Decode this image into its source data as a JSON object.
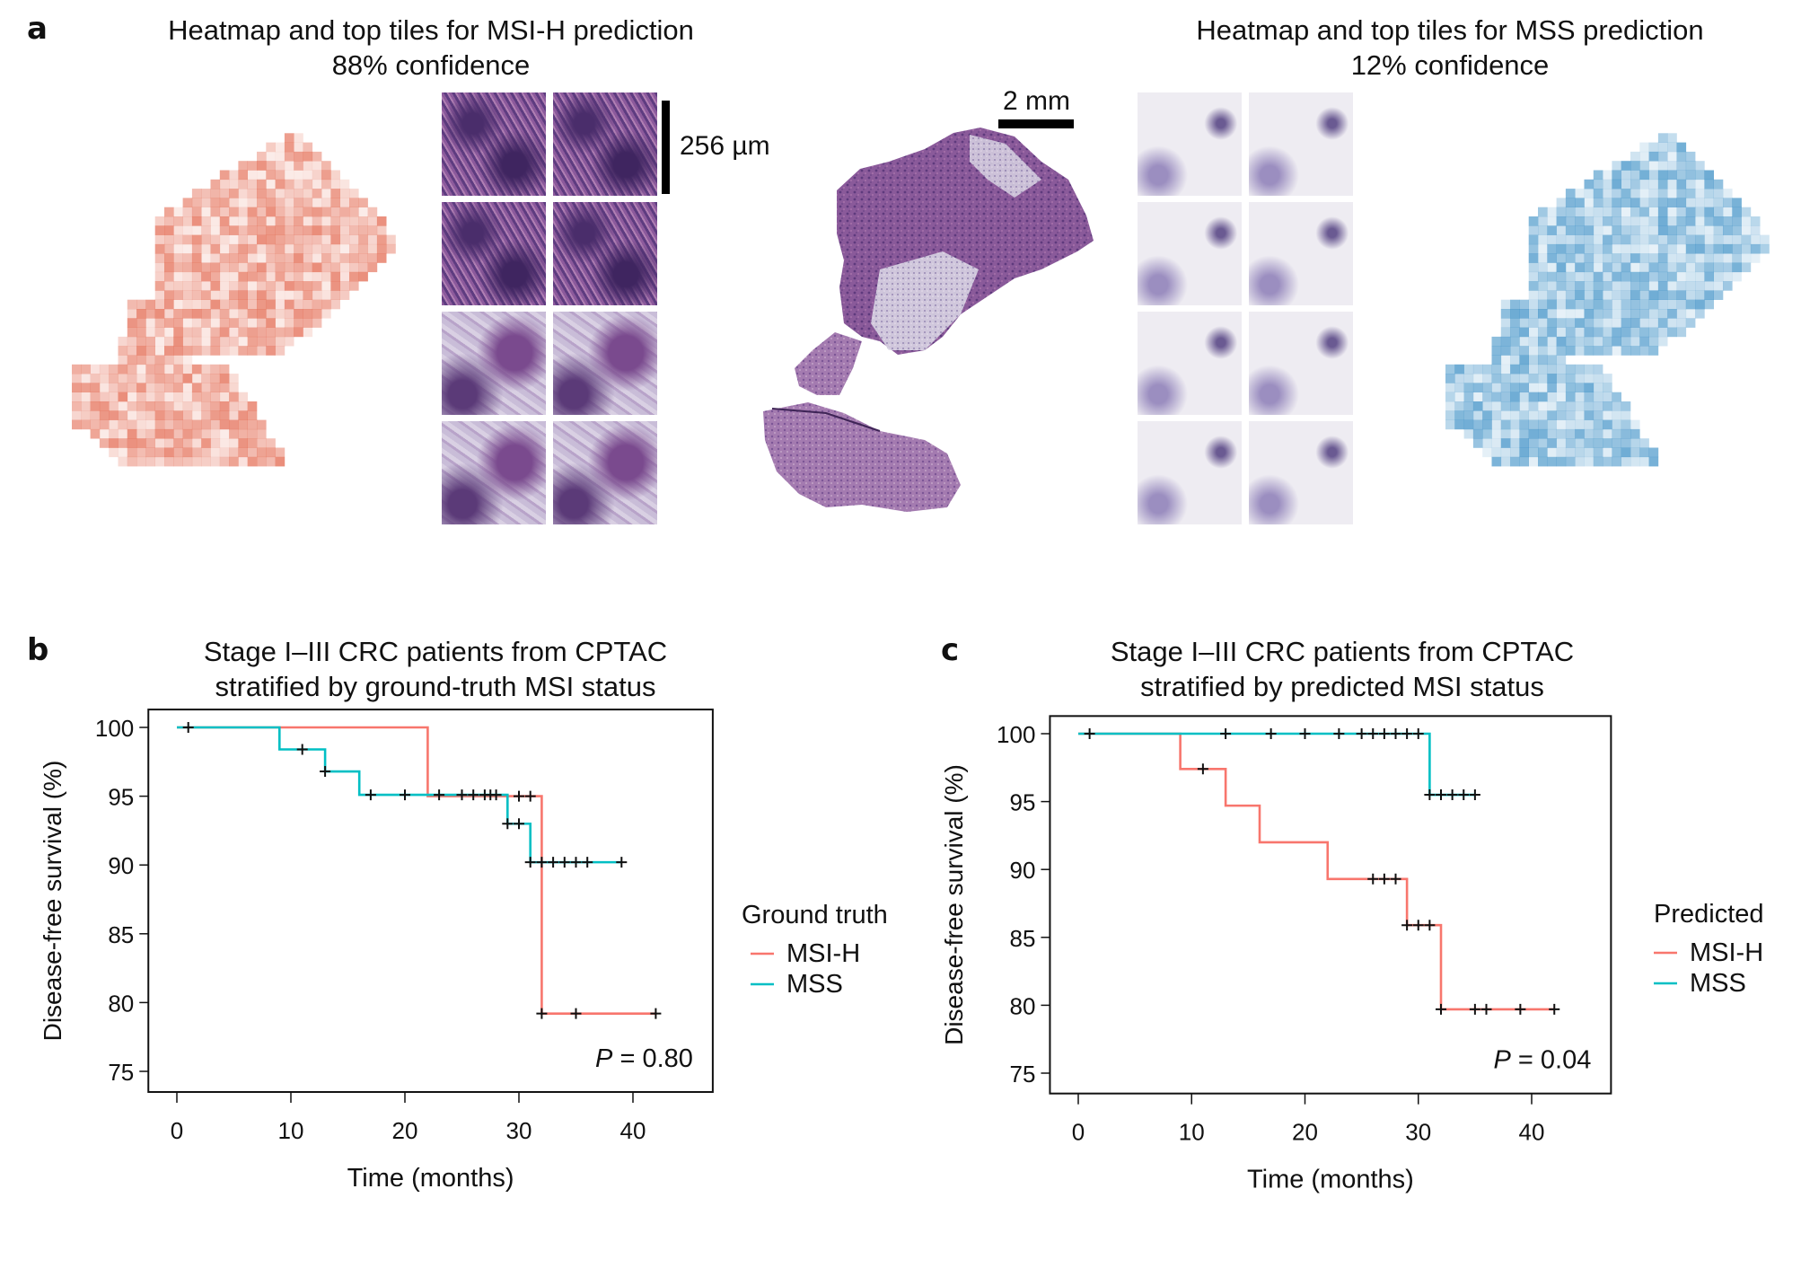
{
  "panel_a": {
    "letter": "a",
    "left_title_line1": "Heatmap and top tiles for MSI-H prediction",
    "left_title_line2": "88% confidence",
    "right_title_line1": "Heatmap and top tiles for MSS prediction",
    "right_title_line2": "12% confidence",
    "tile_scale_label": "256 µm",
    "slide_scale_label": "2 mm",
    "msi_heatmap_color": "#e8826a",
    "mss_heatmap_color": "#4a9fcf",
    "msi_tiles_tone": "dense-purple",
    "mss_tiles_tone": "sparse-light"
  },
  "chart_data": [
    {
      "type": "line",
      "subtype": "kaplan-meier",
      "letter": "b",
      "title_line1": "Stage I–III CRC patients from CPTAC",
      "title_line2": "stratified by ground-truth MSI status",
      "xlabel": "Time (months)",
      "ylabel": "Disease-free survival (%)",
      "xlim": [
        -2.5,
        47
      ],
      "ylim": [
        73.5,
        101.3
      ],
      "xticks": [
        0,
        10,
        20,
        30,
        40
      ],
      "yticks": [
        75,
        80,
        85,
        90,
        95,
        100
      ],
      "legend_title": "Ground truth",
      "legend_position": "right",
      "pvalue_label": "P",
      "pvalue_text": " = 0.80",
      "series": [
        {
          "name": "MSI-H",
          "color": "#f8766d",
          "steps": [
            [
              0,
              100
            ],
            [
              22,
              95.0
            ],
            [
              32,
              79.2
            ],
            [
              42,
              79.2
            ]
          ],
          "censored": [
            [
              30,
              95.0
            ],
            [
              31,
              95.0
            ],
            [
              32,
              79.2
            ],
            [
              35,
              79.2
            ],
            [
              42,
              79.2
            ]
          ]
        },
        {
          "name": "MSS",
          "color": "#00bfc4",
          "steps": [
            [
              0,
              100
            ],
            [
              9,
              98.4
            ],
            [
              13,
              96.8
            ],
            [
              16,
              95.1
            ],
            [
              29,
              93.0
            ],
            [
              31,
              90.2
            ],
            [
              39,
              90.2
            ]
          ],
          "censored": [
            [
              1,
              100
            ],
            [
              11,
              98.4
            ],
            [
              13,
              96.8
            ],
            [
              17,
              95.1
            ],
            [
              20,
              95.1
            ],
            [
              23,
              95.1
            ],
            [
              25,
              95.1
            ],
            [
              26,
              95.1
            ],
            [
              27,
              95.1
            ],
            [
              27.5,
              95.1
            ],
            [
              28,
              95.1
            ],
            [
              29,
              93.0
            ],
            [
              30,
              93.0
            ],
            [
              31,
              90.2
            ],
            [
              32,
              90.2
            ],
            [
              33,
              90.2
            ],
            [
              34,
              90.2
            ],
            [
              35,
              90.2
            ],
            [
              36,
              90.2
            ],
            [
              39,
              90.2
            ]
          ]
        }
      ]
    },
    {
      "type": "line",
      "subtype": "kaplan-meier",
      "letter": "c",
      "title_line1": "Stage I–III CRC patients from CPTAC",
      "title_line2": "stratified by predicted MSI status",
      "xlabel": "Time (months)",
      "ylabel": "Disease-free survival (%)",
      "xlim": [
        -2.5,
        47
      ],
      "ylim": [
        73.5,
        101.3
      ],
      "xticks": [
        0,
        10,
        20,
        30,
        40
      ],
      "yticks": [
        75,
        80,
        85,
        90,
        95,
        100
      ],
      "legend_title": "Predicted",
      "legend_position": "right",
      "pvalue_label": "P",
      "pvalue_text": " = 0.04",
      "series": [
        {
          "name": "MSI-H",
          "color": "#f8766d",
          "steps": [
            [
              0,
              100
            ],
            [
              9,
              97.4
            ],
            [
              13,
              94.7
            ],
            [
              16,
              92.0
            ],
            [
              22,
              89.3
            ],
            [
              29,
              85.9
            ],
            [
              32,
              79.7
            ],
            [
              42,
              79.7
            ]
          ],
          "censored": [
            [
              11,
              97.4
            ],
            [
              26,
              89.3
            ],
            [
              27,
              89.3
            ],
            [
              28,
              89.3
            ],
            [
              29,
              85.9
            ],
            [
              30,
              85.9
            ],
            [
              31,
              85.9
            ],
            [
              32,
              79.7
            ],
            [
              35,
              79.7
            ],
            [
              36,
              79.7
            ],
            [
              39,
              79.7
            ],
            [
              42,
              79.7
            ]
          ]
        },
        {
          "name": "MSS",
          "color": "#00bfc4",
          "steps": [
            [
              0,
              100
            ],
            [
              31,
              95.5
            ],
            [
              35,
              95.5
            ]
          ],
          "censored": [
            [
              1,
              100
            ],
            [
              13,
              100
            ],
            [
              17,
              100
            ],
            [
              20,
              100
            ],
            [
              23,
              100
            ],
            [
              25,
              100
            ],
            [
              26,
              100
            ],
            [
              27,
              100
            ],
            [
              28,
              100
            ],
            [
              29,
              100
            ],
            [
              30,
              100
            ],
            [
              31,
              95.5
            ],
            [
              32,
              95.5
            ],
            [
              33,
              95.5
            ],
            [
              34,
              95.5
            ],
            [
              35,
              95.5
            ]
          ]
        }
      ]
    }
  ]
}
